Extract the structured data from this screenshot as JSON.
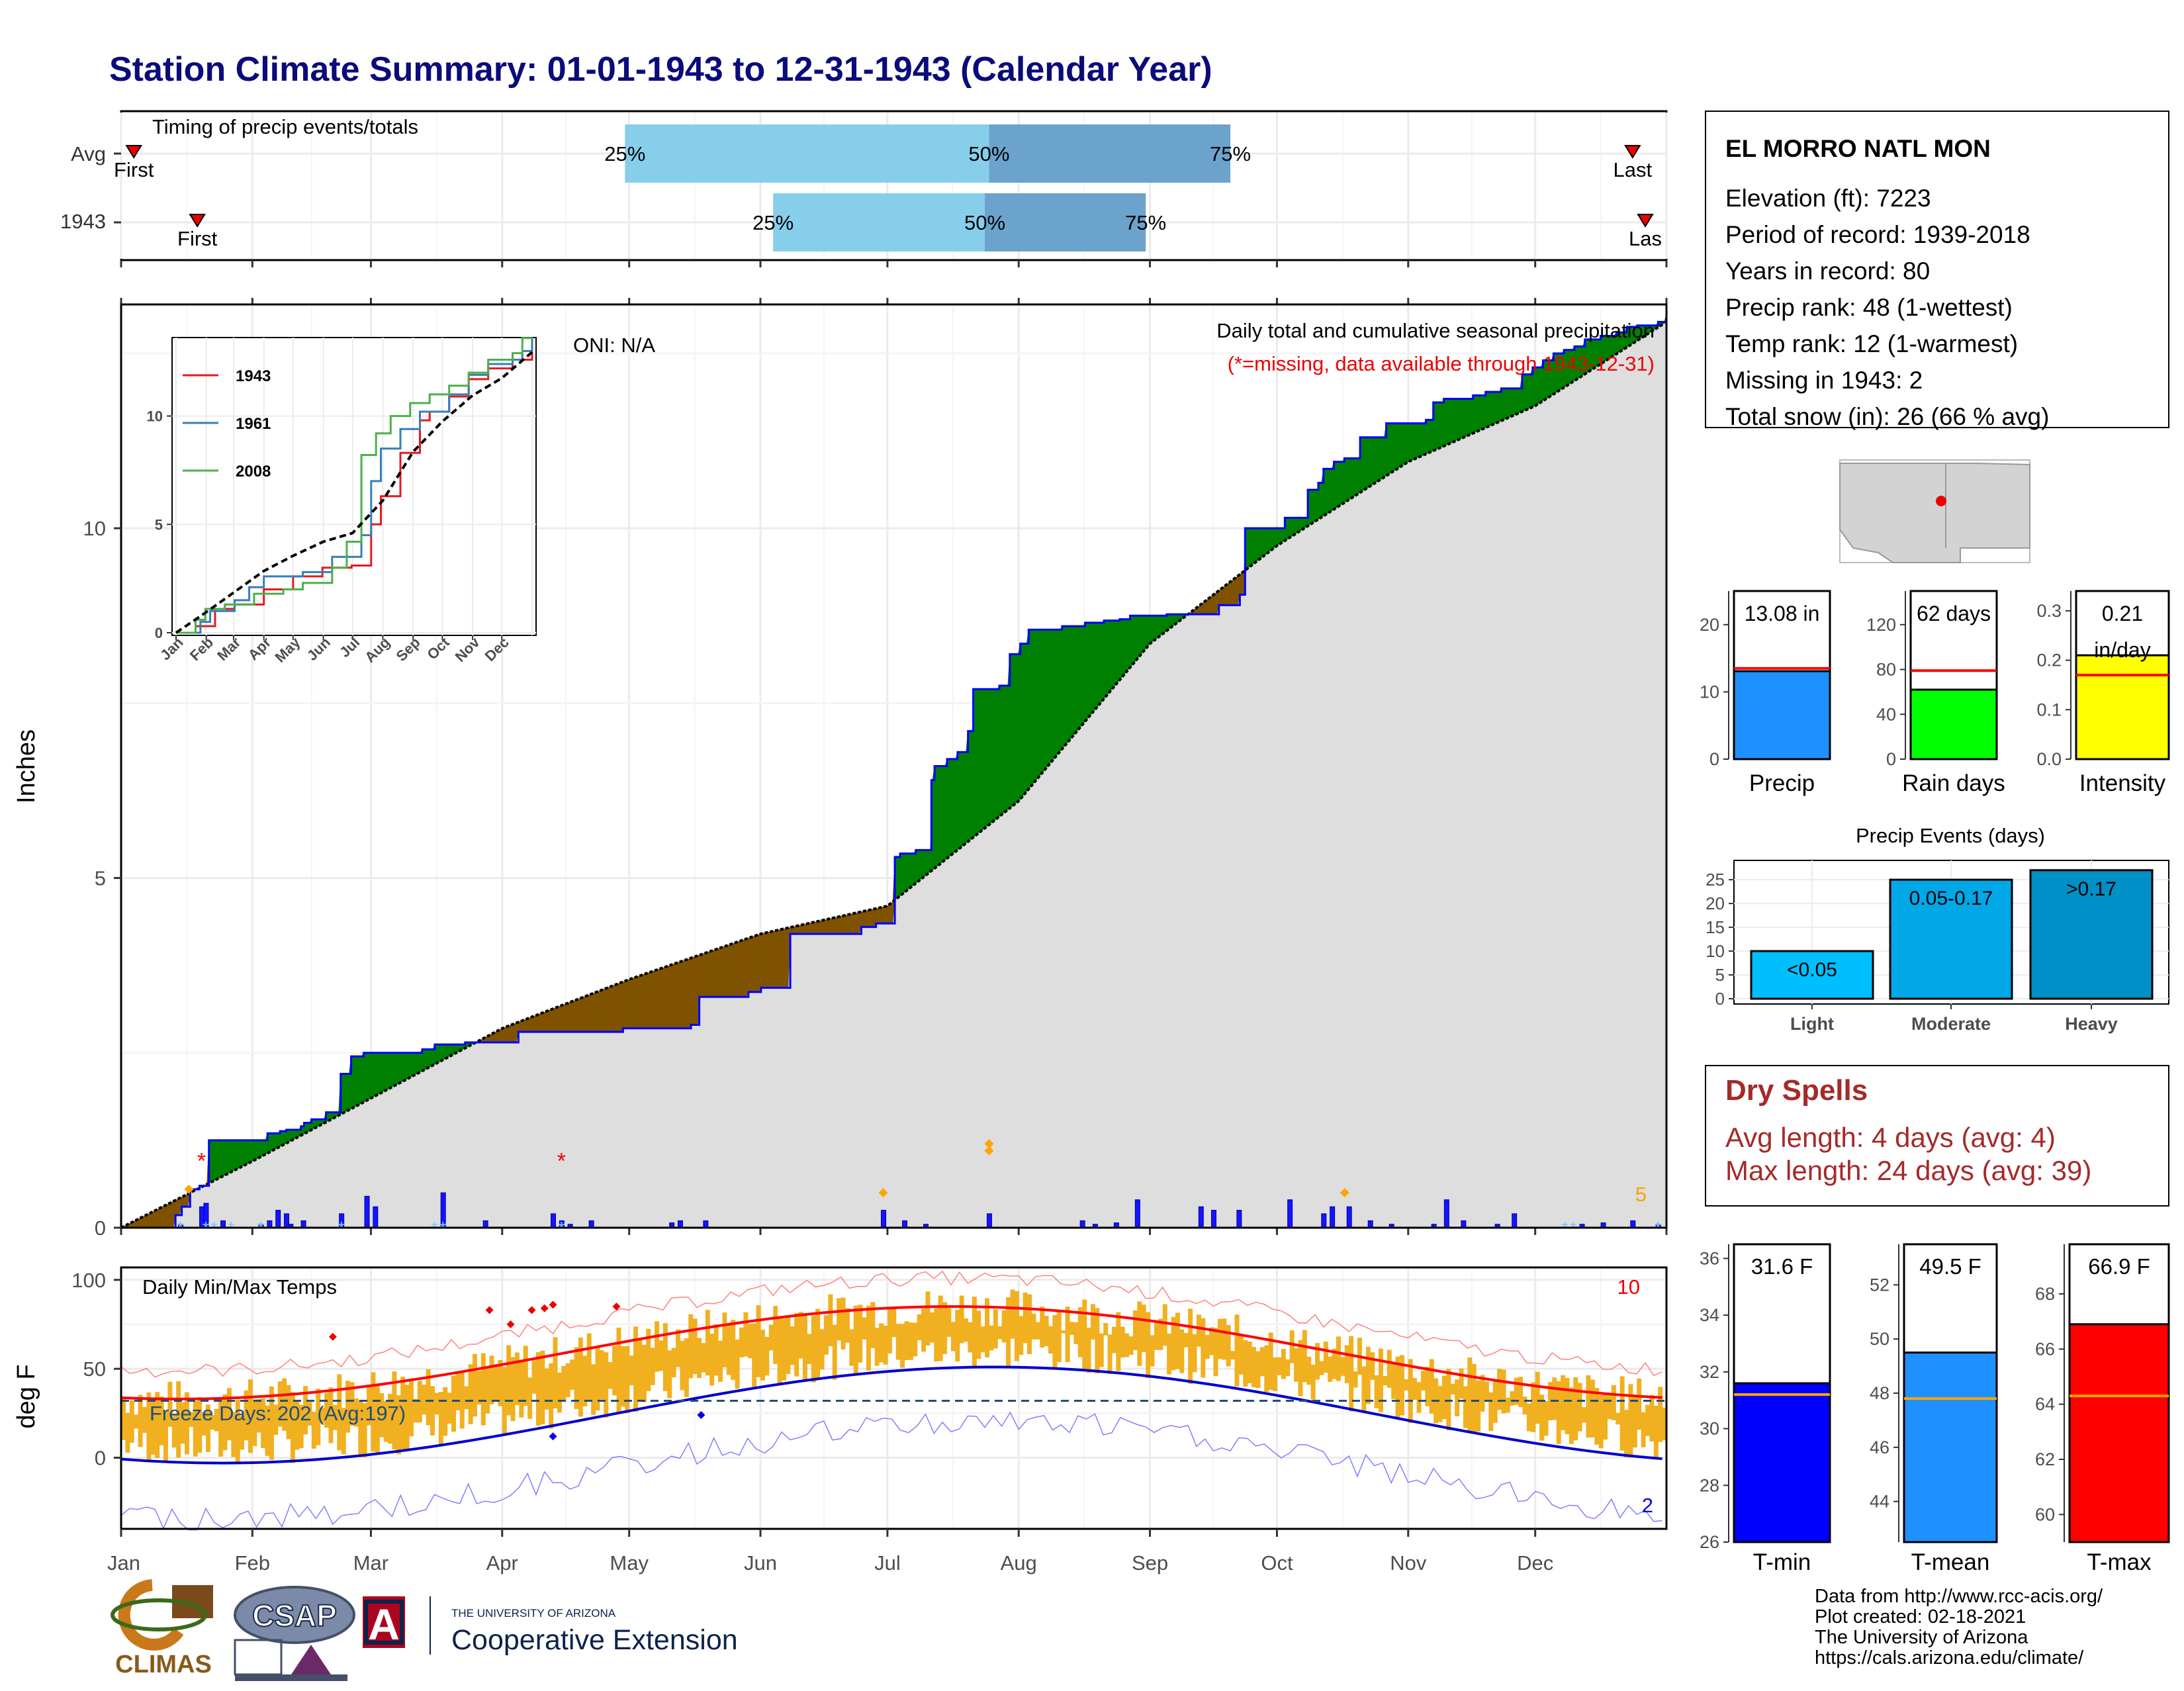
{
  "title": "Station Climate Summary: 01-01-1943 to 12-31-1943 (Calendar Year)",
  "months": [
    "Jan",
    "Feb",
    "Mar",
    "Apr",
    "May",
    "Jun",
    "Jul",
    "Aug",
    "Sep",
    "Oct",
    "Nov",
    "Dec"
  ],
  "timing": {
    "title": "Timing of precip events/totals",
    "rows": [
      {
        "label": "Avg",
        "first_label": "First",
        "last_label": "Last",
        "q25": "25%",
        "q50": "50%",
        "q75": "75%",
        "first_doy": 3,
        "last_doy": 357,
        "q25_doy": 119,
        "q50_doy": 205,
        "q75_doy": 262
      },
      {
        "label": "1943",
        "first_label": "First",
        "last_label": "Las",
        "q25": "25%",
        "q50": "50%",
        "q75": "75%",
        "first_doy": 18,
        "last_doy": 360,
        "q25_doy": 154,
        "q50_doy": 204,
        "q75_doy": 242
      }
    ]
  },
  "precip_panel": {
    "title": "Daily total and cumulative seasonal precipitation",
    "note": "(*=missing, data available through 1943-12-31)",
    "oni": "ONI: N/A",
    "ylabel": "Inches",
    "yticks": [
      "0",
      "5",
      "10"
    ],
    "corner_count": "5",
    "colors": {
      "above": "#008000",
      "below": "#7f5200",
      "cum_line": "#0000ff",
      "avg_line": "#000000",
      "bars": "#0000ff"
    }
  },
  "inset": {
    "yticks": [
      "0",
      "5",
      "10"
    ],
    "months": [
      "Jan",
      "Feb",
      "Mar",
      "Apr",
      "May",
      "Jun",
      "Jul",
      "Aug",
      "Sep",
      "Oct",
      "Nov",
      "Dec"
    ],
    "legend": [
      {
        "name": "1943",
        "color": "#e41a1c"
      },
      {
        "name": "1961",
        "color": "#377eb8"
      },
      {
        "name": "2008",
        "color": "#4daf4a"
      }
    ]
  },
  "temp_panel": {
    "title": "Daily Min/Max Temps",
    "ylabel": "deg F",
    "yticks": [
      "0",
      "50",
      "100"
    ],
    "freeze": "Freeze Days: 202 (Avg:197)",
    "count_hi": "10",
    "count_lo": "2"
  },
  "station": {
    "name": "EL MORRO NATL MON",
    "lines": [
      "Elevation (ft): 7223",
      "Period of record: 1939-2018",
      "Years in record: 80",
      "Precip rank: 48 (1-wettest)",
      "Temp rank: 12 (1-warmest)",
      "Missing in 1943: 2",
      "Total snow (in): 26 (66 % avg)"
    ]
  },
  "gauges": [
    {
      "label": "Precip",
      "value_text": "13.08 in",
      "value": 13.08,
      "avg": 13.5,
      "max": 25,
      "yticks": [
        "0",
        "10",
        "20"
      ],
      "ytick_vals": [
        0,
        10,
        20
      ],
      "color": "#1e90ff"
    },
    {
      "label": "Rain days",
      "value_text": "62 days",
      "value": 62,
      "avg": 79,
      "max": 150,
      "yticks": [
        "0",
        "40",
        "80",
        "120"
      ],
      "ytick_vals": [
        0,
        40,
        80,
        120
      ],
      "color": "#00ff00"
    },
    {
      "label": "Intensity",
      "value_text": "0.21\nin/day",
      "value": 0.21,
      "avg": 0.17,
      "max": 0.34,
      "yticks": [
        "0.0",
        "0.1",
        "0.2",
        "0.3"
      ],
      "ytick_vals": [
        0,
        0.1,
        0.2,
        0.3
      ],
      "color": "#ffff00"
    }
  ],
  "events": {
    "title": "Precip Events (days)",
    "yticks": [
      "0",
      "5",
      "10",
      "15",
      "20",
      "25"
    ],
    "bars": [
      {
        "category": "Light",
        "value": 10,
        "label": "<0.05",
        "color": "#00bfff"
      },
      {
        "category": "Moderate",
        "value": 25,
        "label": "0.05-0.17",
        "color": "#00a8e8"
      },
      {
        "category": "Heavy",
        "value": 27,
        "label": ">0.17",
        "color": "#0090c8"
      }
    ]
  },
  "dry_spells": {
    "title": "Dry Spells",
    "avg_line": "Avg length: 4 days (avg: 4)",
    "max_line": "Max length: 24 days (avg: 39)"
  },
  "temp_gauges": [
    {
      "label": "T-min",
      "value_text": "31.6 F",
      "value": 31.6,
      "avg": 31.2,
      "min": 26,
      "max": 36.5,
      "yticks": [
        "26",
        "28",
        "30",
        "32",
        "34",
        "36"
      ],
      "ytick_vals": [
        26,
        28,
        30,
        32,
        34,
        36
      ],
      "color": "#0000ff"
    },
    {
      "label": "T-mean",
      "value_text": "49.5 F",
      "value": 49.5,
      "avg": 47.8,
      "min": 42.5,
      "max": 53.5,
      "yticks": [
        "44",
        "46",
        "48",
        "50",
        "52"
      ],
      "ytick_vals": [
        44,
        46,
        48,
        50,
        52
      ],
      "color": "#1e90ff"
    },
    {
      "label": "T-max",
      "value_text": "66.9 F",
      "value": 66.9,
      "avg": 64.3,
      "min": 59,
      "max": 69.8,
      "yticks": [
        "60",
        "62",
        "64",
        "66",
        "68"
      ],
      "ytick_vals": [
        60,
        62,
        64,
        66,
        68
      ],
      "color": "#ff0000"
    }
  ],
  "credits": [
    "Data from http://www.rcc-acis.org/",
    "Plot created: 02-18-2021",
    "The University of Arizona",
    "https://cals.arizona.edu/climate/"
  ],
  "logos": {
    "climas": "CLIMAS",
    "csap": "CSAP",
    "ua_small": "THE UNIVERSITY OF ARIZONA",
    "ua_big": "Cooperative Extension"
  },
  "chart_data": {
    "type": "area",
    "title": "Daily total and cumulative seasonal precipitation",
    "ylabel": "Inches",
    "ylim": [
      0,
      13.2
    ],
    "xlim": [
      0,
      365
    ],
    "cumulative_1943_steps": [
      [
        0,
        0
      ],
      [
        52,
        0.18
      ],
      [
        58,
        0.3
      ],
      [
        66,
        0.55
      ],
      [
        75,
        0.6
      ],
      [
        84,
        1.25
      ],
      [
        136,
        1.25
      ],
      [
        140,
        1.35
      ],
      [
        152,
        1.38
      ],
      [
        158,
        1.4
      ],
      [
        165,
        1.4
      ],
      [
        172,
        1.45
      ],
      [
        175,
        1.5
      ],
      [
        182,
        1.55
      ],
      [
        196,
        1.65
      ],
      [
        210,
        2.2
      ],
      [
        220,
        2.45
      ],
      [
        232,
        2.5
      ],
      [
        280,
        2.5
      ],
      [
        288,
        2.55
      ],
      [
        300,
        2.62
      ],
      [
        326,
        2.62
      ],
      [
        329,
        2.65
      ],
      [
        340,
        2.65
      ],
      [
        372,
        2.65
      ],
      [
        380,
        2.8
      ],
      [
        480,
        2.85
      ],
      [
        545,
        2.9
      ],
      [
        553,
        3.3
      ],
      [
        560,
        3.3
      ],
      [
        600,
        3.37
      ],
      [
        612,
        3.43
      ],
      [
        640,
        4.2
      ],
      [
        700,
        4.2
      ],
      [
        708,
        4.3
      ],
      [
        722,
        4.35
      ],
      [
        740,
        5.3
      ],
      [
        745,
        5.35
      ],
      [
        755,
        5.35
      ],
      [
        760,
        5.4
      ],
      [
        775,
        6.4
      ],
      [
        778,
        6.6
      ],
      [
        790,
        6.7
      ],
      [
        800,
        6.8
      ],
      [
        810,
        7.1
      ],
      [
        815,
        7.7
      ],
      [
        840,
        7.75
      ],
      [
        850,
        8.2
      ],
      [
        860,
        8.35
      ],
      [
        868,
        8.55
      ],
      [
        900,
        8.6
      ],
      [
        922,
        8.65
      ],
      [
        940,
        8.68
      ],
      [
        955,
        8.7
      ],
      [
        965,
        8.75
      ],
      [
        1000,
        8.77
      ],
      [
        1050,
        8.9
      ],
      [
        1070,
        9.05
      ],
      [
        1075,
        10.0
      ],
      [
        1100,
        10.0
      ],
      [
        1113,
        10.15
      ],
      [
        1135,
        10.55
      ],
      [
        1145,
        10.65
      ],
      [
        1150,
        10.85
      ],
      [
        1160,
        10.95
      ],
      [
        1170,
        11.0
      ],
      [
        1185,
        11.3
      ],
      [
        1210,
        11.5
      ],
      [
        1248,
        11.55
      ],
      [
        1255,
        11.8
      ],
      [
        1265,
        11.85
      ],
      [
        1293,
        11.9
      ],
      [
        1305,
        11.95
      ],
      [
        1320,
        12.0
      ],
      [
        1340,
        12.2
      ],
      [
        1350,
        12.3
      ],
      [
        1360,
        12.4
      ],
      [
        1370,
        12.5
      ],
      [
        1380,
        12.55
      ],
      [
        1390,
        12.6
      ],
      [
        1400,
        12.7
      ],
      [
        1415,
        12.75
      ],
      [
        1430,
        12.8
      ],
      [
        1440,
        12.88
      ],
      [
        1450,
        12.9
      ],
      [
        1470,
        12.95
      ],
      [
        1478,
        13.08
      ]
    ],
    "avg_cumulative_points": [
      [
        0,
        0
      ],
      [
        31,
        0.95
      ],
      [
        59,
        1.85
      ],
      [
        90,
        2.85
      ],
      [
        120,
        3.55
      ],
      [
        151,
        4.2
      ],
      [
        181,
        4.6
      ],
      [
        212,
        6.1
      ],
      [
        243,
        8.35
      ],
      [
        273,
        9.75
      ],
      [
        304,
        10.95
      ],
      [
        334,
        11.75
      ],
      [
        365,
        12.95
      ]
    ],
    "daily_bars": [
      [
        14,
        0.05
      ],
      [
        19,
        0.3
      ],
      [
        20,
        0.35
      ],
      [
        24,
        0.1
      ],
      [
        33,
        0.05
      ],
      [
        35,
        0.1
      ],
      [
        37,
        0.25
      ],
      [
        39,
        0.2
      ],
      [
        40,
        0.05
      ],
      [
        43,
        0.1
      ],
      [
        52,
        0.2
      ],
      [
        58,
        0.45
      ],
      [
        60,
        0.3
      ],
      [
        76,
        0.5
      ],
      [
        86,
        0.1
      ],
      [
        102,
        0.2
      ],
      [
        104,
        0.1
      ],
      [
        106,
        0.05
      ],
      [
        111,
        0.1
      ],
      [
        130,
        0.07
      ],
      [
        132,
        0.1
      ],
      [
        138,
        0.1
      ],
      [
        180,
        0.25
      ],
      [
        185,
        0.1
      ],
      [
        190,
        0.05
      ],
      [
        205,
        0.2
      ],
      [
        227,
        0.1
      ],
      [
        230,
        0.05
      ],
      [
        235,
        0.07
      ],
      [
        240,
        0.4
      ],
      [
        255,
        0.3
      ],
      [
        258,
        0.25
      ],
      [
        264,
        0.25
      ],
      [
        276,
        0.4
      ],
      [
        284,
        0.2
      ],
      [
        286,
        0.3
      ],
      [
        290,
        0.3
      ],
      [
        295,
        0.1
      ],
      [
        300,
        0.05
      ],
      [
        310,
        0.05
      ],
      [
        313,
        0.4
      ],
      [
        317,
        0.1
      ],
      [
        325,
        0.05
      ],
      [
        329,
        0.2
      ],
      [
        345,
        0.05
      ],
      [
        350,
        0.07
      ],
      [
        357,
        0.1
      ],
      [
        363,
        0.05
      ]
    ],
    "series": [
      {
        "name": "1943",
        "values": []
      },
      {
        "name": "1961",
        "values": []
      },
      {
        "name": "2008",
        "values": []
      }
    ]
  }
}
